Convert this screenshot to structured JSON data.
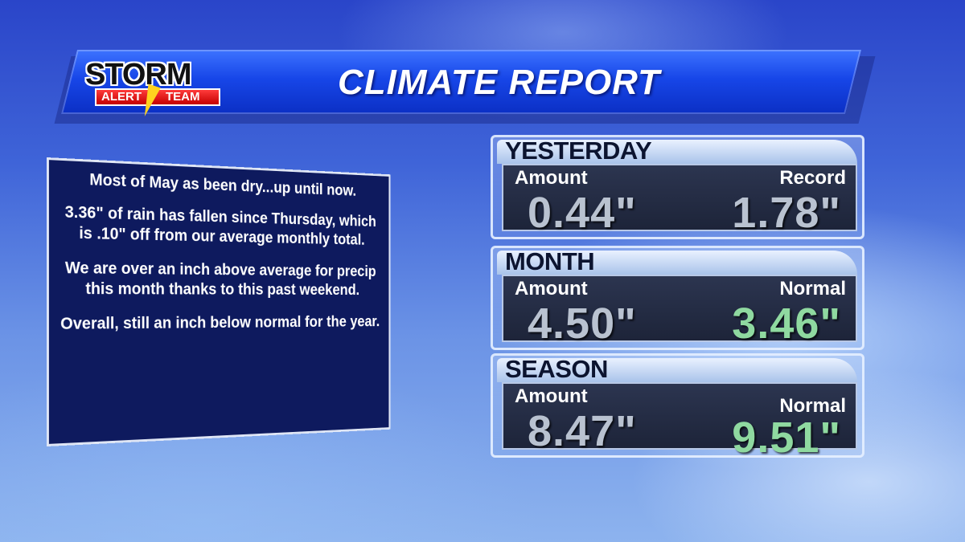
{
  "logo": {
    "storm": "STORM",
    "alert": "ALERT",
    "team": "TEAM"
  },
  "title": "CLIMATE REPORT",
  "message": [
    "Most of May as been dry...up until now.",
    "3.36\" of rain has fallen since Thursday, which is .10\" off from our average monthly total.",
    "We are over an inch above average for precip this month thanks to this past weekend.",
    "Overall, still an inch below normal for the year."
  ],
  "panels": [
    {
      "heading": "YESTERDAY",
      "left_label": "Amount",
      "left_value": "0.44\"",
      "right_label": "Record",
      "right_value": "1.78\""
    },
    {
      "heading": "MONTH",
      "left_label": "Amount",
      "left_value": "4.50\"",
      "right_label": "Normal",
      "right_value": "3.46\""
    },
    {
      "heading": "SEASON",
      "left_label": "Amount",
      "left_value": "8.47\"",
      "right_label": "Normal",
      "right_value": "9.51\""
    }
  ],
  "colors": {
    "value_gray": "#b9c2d0",
    "value_green": "#8fd9a0",
    "panel_body": "#1d2439",
    "banner": "#1746e8",
    "message_box": "#0e1a5e"
  }
}
